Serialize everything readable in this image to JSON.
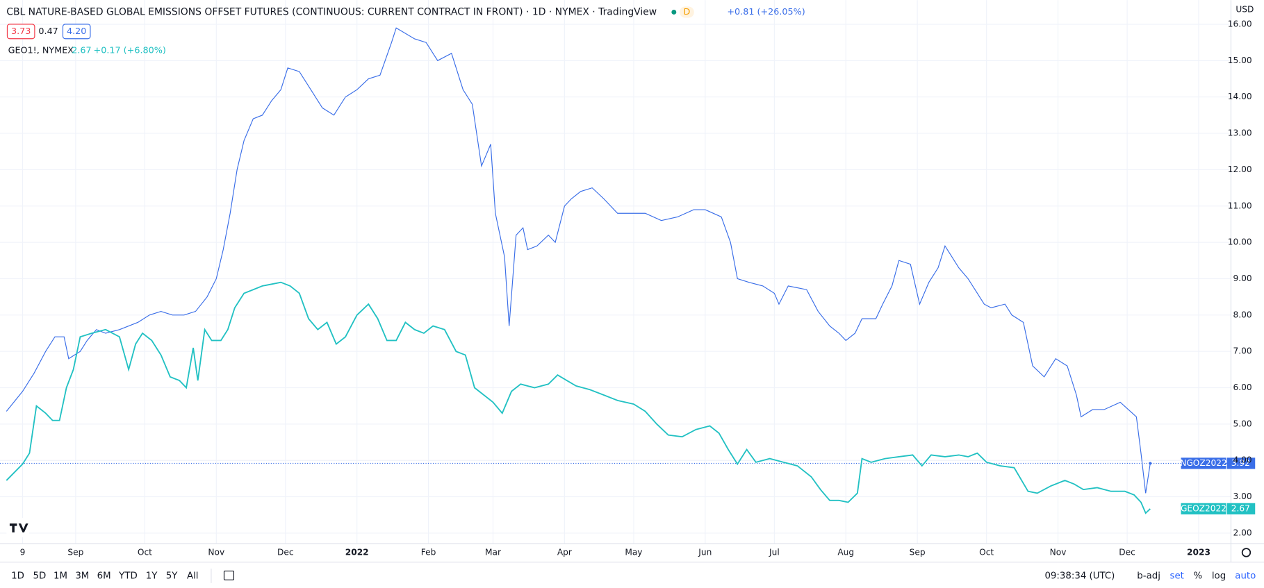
{
  "chart_data": {
    "type": "line",
    "title": "CBL NATURE-BASED GLOBAL EMISSIONS OFFSET FUTURES (CONTINUOUS: CURRENT CONTRACT IN FRONT) · 1D · NYMEX · TradingView",
    "series": [
      {
        "name": "NGOZ2022",
        "color": "#3a6ee8",
        "x": [
          -7,
          0,
          5,
          10,
          14,
          18,
          20,
          25,
          28,
          32,
          36,
          42,
          50,
          55,
          60,
          65,
          70,
          75,
          80,
          84,
          87,
          90,
          93,
          96,
          100,
          104,
          108,
          112,
          115,
          120,
          125,
          130,
          135,
          140,
          145,
          150,
          155,
          160,
          162,
          170,
          175,
          180,
          186,
          191,
          195,
          199,
          203,
          205,
          209,
          211,
          214,
          217,
          219,
          223,
          228,
          231,
          235,
          238,
          242,
          247,
          252,
          258,
          263,
          270,
          277,
          284,
          291,
          296,
          303,
          307,
          310,
          315,
          321,
          326,
          328,
          332,
          340,
          345,
          350,
          354,
          357,
          361,
          364,
          370,
          373,
          377,
          380,
          385,
          389,
          393,
          397,
          400,
          403,
          406,
          410,
          413,
          417,
          420,
          426,
          429,
          434,
          438,
          443,
          448,
          453,
          457,
          459,
          464,
          469,
          476,
          483,
          485,
          487,
          489
        ],
        "values": [
          5.35,
          5.9,
          6.4,
          7.0,
          7.4,
          7.4,
          6.8,
          7.0,
          7.3,
          7.6,
          7.5,
          7.6,
          7.8,
          8.0,
          8.1,
          8.0,
          8.0,
          8.1,
          8.5,
          9.0,
          9.8,
          10.8,
          12.0,
          12.8,
          13.4,
          13.5,
          13.9,
          14.2,
          14.8,
          14.7,
          14.2,
          13.7,
          13.5,
          14.0,
          14.2,
          14.5,
          14.6,
          15.5,
          15.9,
          15.6,
          15.5,
          15.0,
          15.2,
          14.2,
          13.8,
          12.1,
          12.7,
          10.8,
          9.6,
          7.7,
          10.2,
          10.4,
          9.8,
          9.9,
          10.2,
          10.0,
          11.0,
          11.2,
          11.4,
          11.5,
          11.2,
          10.8,
          10.8,
          10.8,
          10.6,
          10.7,
          10.9,
          10.9,
          10.7,
          10.0,
          9.0,
          8.9,
          8.8,
          8.6,
          8.3,
          8.8,
          8.7,
          8.1,
          7.7,
          7.5,
          7.3,
          7.5,
          7.9,
          7.9,
          8.3,
          8.8,
          9.5,
          9.4,
          8.3,
          8.9,
          9.3,
          9.9,
          9.6,
          9.3,
          9.0,
          8.7,
          8.3,
          8.2,
          8.3,
          8.0,
          7.8,
          6.6,
          6.3,
          6.8,
          6.6,
          5.8,
          5.2,
          5.4,
          5.4,
          5.6,
          5.2,
          4.2,
          3.1,
          3.92
        ]
      },
      {
        "name": "GEOZ2022",
        "color": "#22c1c3",
        "x": [
          -7,
          0,
          3,
          6,
          10,
          13,
          16,
          19,
          22,
          25,
          30,
          36,
          42,
          46,
          49,
          52,
          56,
          60,
          64,
          68,
          71,
          74,
          76,
          79,
          82,
          86,
          89,
          92,
          96,
          100,
          104,
          108,
          112,
          116,
          120,
          124,
          128,
          132,
          136,
          140,
          145,
          150,
          154,
          158,
          162,
          166,
          170,
          174,
          178,
          183,
          188,
          192,
          196,
          200,
          204,
          208,
          212,
          216,
          222,
          228,
          232,
          236,
          240,
          246,
          252,
          258,
          265,
          270,
          275,
          280,
          286,
          292,
          298,
          302,
          306,
          310,
          314,
          318,
          324,
          330,
          336,
          342,
          346,
          350,
          354,
          358,
          362,
          364,
          368,
          374,
          380,
          386,
          390,
          394,
          400,
          406,
          410,
          414,
          418,
          424,
          430,
          436,
          440,
          446,
          452,
          456,
          460,
          466,
          472,
          478,
          482,
          485,
          487,
          489
        ],
        "values": [
          3.45,
          3.9,
          4.2,
          5.5,
          5.3,
          5.1,
          5.1,
          6.0,
          6.5,
          7.4,
          7.5,
          7.6,
          7.4,
          6.5,
          7.2,
          7.5,
          7.3,
          6.9,
          6.3,
          6.2,
          6.0,
          7.1,
          6.2,
          7.6,
          7.3,
          7.3,
          7.6,
          8.2,
          8.6,
          8.7,
          8.8,
          8.85,
          8.9,
          8.8,
          8.6,
          7.9,
          7.6,
          7.8,
          7.2,
          7.4,
          8.0,
          8.3,
          7.9,
          7.3,
          7.3,
          7.8,
          7.6,
          7.5,
          7.7,
          7.6,
          7.0,
          6.9,
          6.0,
          5.8,
          5.6,
          5.3,
          5.9,
          6.1,
          6.0,
          6.1,
          6.35,
          6.2,
          6.05,
          5.95,
          5.8,
          5.65,
          5.55,
          5.35,
          5.0,
          4.7,
          4.65,
          4.85,
          4.95,
          4.75,
          4.3,
          3.9,
          4.3,
          3.95,
          4.05,
          3.95,
          3.85,
          3.55,
          3.2,
          2.9,
          2.9,
          2.85,
          3.1,
          4.05,
          3.95,
          4.05,
          4.1,
          4.15,
          3.85,
          4.15,
          4.1,
          4.15,
          4.1,
          4.2,
          3.95,
          3.85,
          3.8,
          3.15,
          3.1,
          3.3,
          3.45,
          3.35,
          3.2,
          3.25,
          3.15,
          3.15,
          3.05,
          2.85,
          2.55,
          2.67
        ]
      }
    ],
    "xlim": [
      -9.8,
      524
    ],
    "xticks": [
      {
        "value": 0,
        "label": "9"
      },
      {
        "value": 23,
        "label": "Sep"
      },
      {
        "value": 53,
        "label": "Oct"
      },
      {
        "value": 84,
        "label": "Nov"
      },
      {
        "value": 114,
        "label": "Dec"
      },
      {
        "value": 145,
        "label": "2022"
      },
      {
        "value": 176,
        "label": "Feb"
      },
      {
        "value": 204,
        "label": "Mar"
      },
      {
        "value": 235,
        "label": "Apr"
      },
      {
        "value": 265,
        "label": "May"
      },
      {
        "value": 296,
        "label": "Jun"
      },
      {
        "value": 326,
        "label": "Jul"
      },
      {
        "value": 357,
        "label": "Aug"
      },
      {
        "value": 388,
        "label": "Sep"
      },
      {
        "value": 418,
        "label": "Oct"
      },
      {
        "value": 449,
        "label": "Nov"
      },
      {
        "value": 479,
        "label": "Dec"
      },
      {
        "value": 510,
        "label": "2023"
      }
    ],
    "ylim": [
      1.71,
      16.49
    ],
    "yticks": [
      {
        "value": 2,
        "label": "2.00"
      },
      {
        "value": 3,
        "label": "3.00"
      },
      {
        "value": 4,
        "label": "4.00"
      },
      {
        "value": 5,
        "label": "5.00"
      },
      {
        "value": 6,
        "label": "6.00"
      },
      {
        "value": 7,
        "label": "7.00"
      },
      {
        "value": 8,
        "label": "8.00"
      },
      {
        "value": 9,
        "label": "9.00"
      },
      {
        "value": 10,
        "label": "10.00"
      },
      {
        "value": 11,
        "label": "11.00"
      },
      {
        "value": 12,
        "label": "12.00"
      },
      {
        "value": 13,
        "label": "13.00"
      },
      {
        "value": 14,
        "label": "14.00"
      },
      {
        "value": 15,
        "label": "15.00"
      },
      {
        "value": 16,
        "label": "16.00"
      }
    ],
    "grid": true,
    "currency": "USD"
  },
  "legend": {
    "interval": "D",
    "change": "+0.81 (+26.05%)",
    "ohlc": [
      "3.73",
      "0.47",
      "4.20"
    ],
    "symbol2": "GEO1!, NYMEX",
    "change2": "+0.17 (+6.80%)"
  },
  "toolbar": {
    "ranges": [
      "1D",
      "5D",
      "1M",
      "3M",
      "6M",
      "YTD",
      "1Y",
      "5Y",
      "All"
    ],
    "clock": "09:38:34 (UTC)",
    "options": [
      "b-adj",
      "set",
      "%",
      "log",
      "auto"
    ]
  }
}
